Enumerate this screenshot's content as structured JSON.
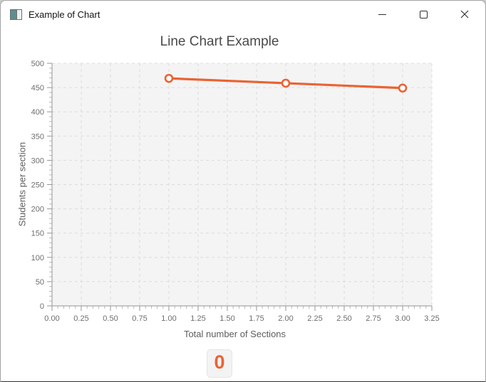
{
  "window": {
    "title": "Example of Chart",
    "icons": {
      "app": "app-window-icon",
      "minimize": "minimize-dash",
      "maximize": "maximize-square",
      "close": "close-x"
    }
  },
  "chart_data": {
    "type": "line",
    "title": "Line Chart Example",
    "xlabel": "Total number of Sections",
    "ylabel": "Students per section",
    "xlim": [
      0,
      3.25
    ],
    "ylim": [
      0,
      500
    ],
    "x_tick_labels": [
      "0.00",
      "0.25",
      "0.50",
      "0.75",
      "1.00",
      "1.25",
      "1.50",
      "1.75",
      "2.00",
      "2.25",
      "2.50",
      "2.75",
      "3.00",
      "3.25"
    ],
    "y_tick_labels": [
      "0",
      "50",
      "100",
      "150",
      "200",
      "250",
      "300",
      "350",
      "400",
      "450",
      "500"
    ],
    "grid": true,
    "legend_position": "bottom",
    "legend_label": "0",
    "plot_background": "#f4f4f4",
    "grid_color": "#dcdcdc",
    "axis_color": "#949494",
    "series": [
      {
        "name": "0",
        "color": "#ea6333",
        "marker": "hollow-circle",
        "x": [
          1.0,
          2.0,
          3.0
        ],
        "values": [
          469,
          459,
          449
        ]
      }
    ]
  }
}
